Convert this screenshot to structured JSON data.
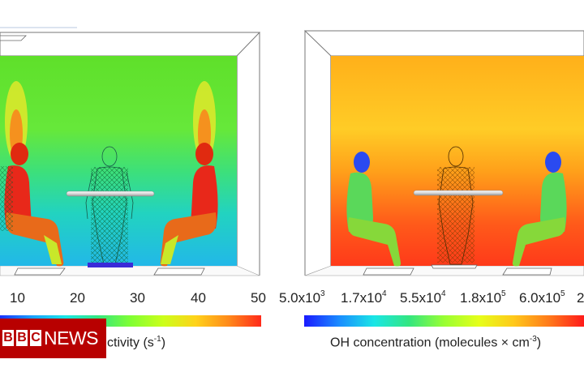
{
  "left_panel": {
    "ticks": [
      "10",
      "20",
      "30",
      "40",
      "50"
    ],
    "caption_visible": "ctivity (s",
    "caption_exp": "-1",
    "caption_end": ")",
    "palette": [
      "#1a33ff",
      "#1aa0ff",
      "#1ae6e6",
      "#33e680",
      "#80ff33",
      "#ccff1a",
      "#ffd21a",
      "#ff8a1a",
      "#ff2a1a"
    ]
  },
  "right_panel": {
    "ticks": [
      {
        "base": "5.0x10",
        "exp": "3"
      },
      {
        "base": "1.7x10",
        "exp": "4"
      },
      {
        "base": "5.5x10",
        "exp": "4"
      },
      {
        "base": "1.8x10",
        "exp": "5"
      },
      {
        "base": "6.0x10",
        "exp": "5"
      },
      {
        "base": "2",
        "exp": ""
      }
    ],
    "caption_main": "OH concentration (molecules × cm",
    "caption_exp": "-3",
    "caption_end": ")",
    "palette": [
      "#1a1aff",
      "#1a8cff",
      "#1ae6e6",
      "#33e680",
      "#99ff33",
      "#e6ff1a",
      "#ffc81a",
      "#ff7a1a",
      "#ff1a1a"
    ]
  },
  "logo": {
    "letters": [
      "B",
      "B",
      "C"
    ],
    "word": "NEWS"
  }
}
